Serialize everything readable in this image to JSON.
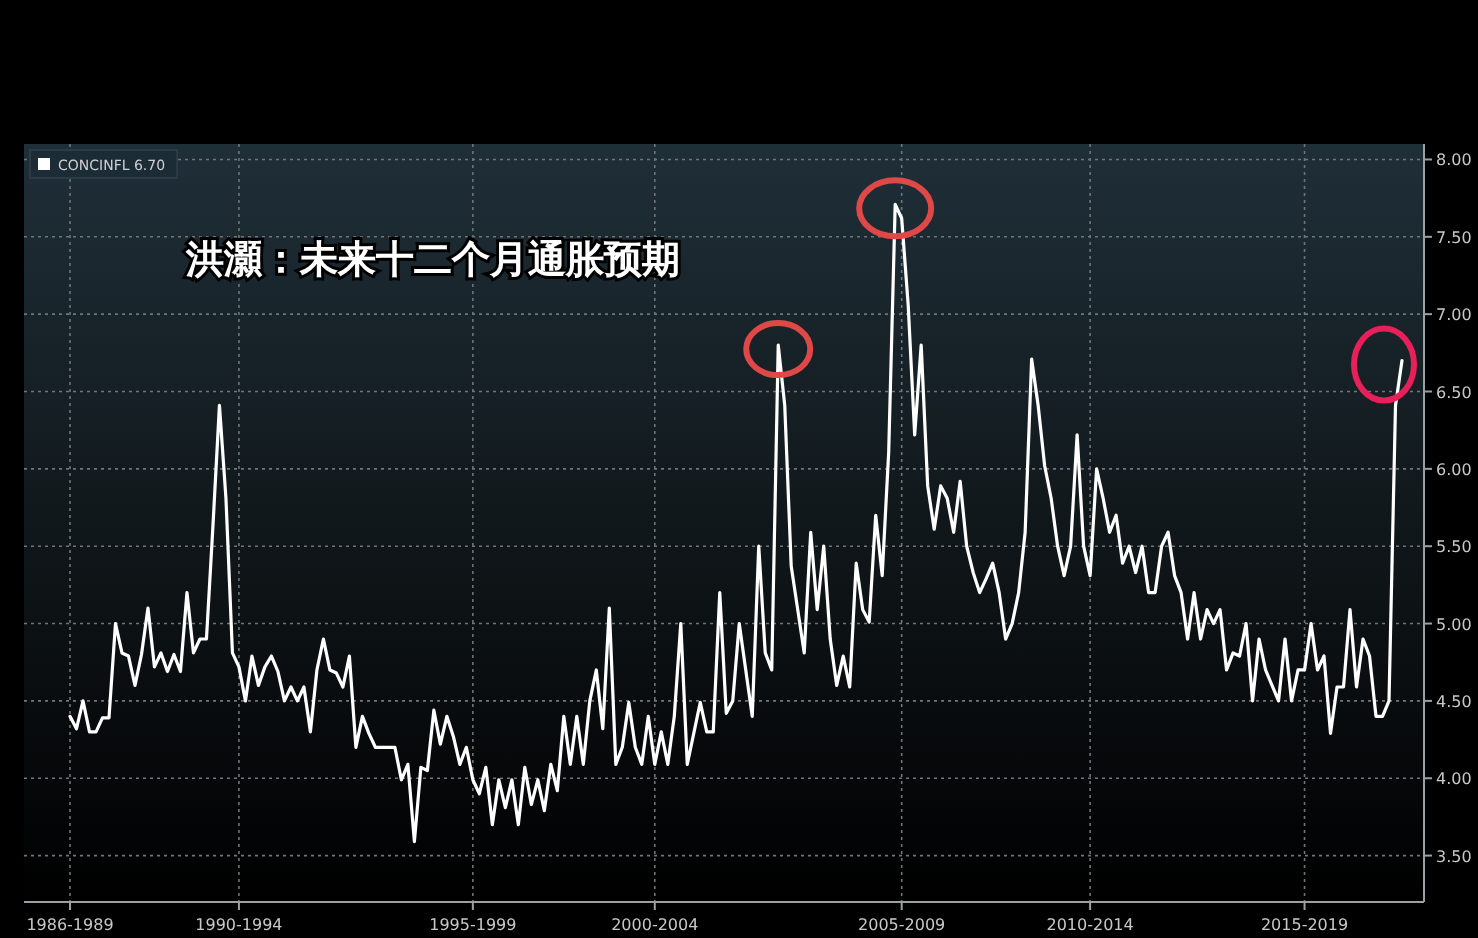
{
  "chart_data": {
    "type": "line",
    "title": "洪灝：未来十二个月通胀预期",
    "categories": [
      "1986-1989",
      null,
      null,
      null,
      null,
      null,
      null,
      null,
      null,
      null,
      null,
      null,
      null,
      null,
      null,
      null,
      null,
      null,
      null,
      null,
      null,
      null,
      null,
      null,
      null,
      null,
      "1990-1994",
      null,
      null,
      null,
      null,
      null,
      null,
      null,
      null,
      null,
      null,
      null,
      null,
      null,
      null,
      null,
      null,
      null,
      null,
      null,
      null,
      null,
      null,
      null,
      null,
      null,
      null,
      null,
      null,
      null,
      null,
      null,
      null,
      null,
      null,
      null,
      "1995-1999",
      null,
      null,
      null,
      null,
      null,
      null,
      null,
      null,
      null,
      null,
      null,
      null,
      null,
      null,
      null,
      null,
      null,
      null,
      null,
      null,
      null,
      null,
      null,
      null,
      null,
      null,
      null,
      "2000-2004",
      null,
      null,
      null,
      null,
      null,
      null,
      null,
      null,
      null,
      null,
      null,
      null,
      null,
      null,
      null,
      null,
      null,
      null,
      null,
      null,
      null,
      null,
      null,
      null,
      null,
      null,
      null,
      null,
      null,
      null,
      null,
      null,
      null,
      null,
      null,
      null,
      null,
      "2005-2009",
      null,
      null,
      null,
      null,
      null,
      null,
      null,
      null,
      null,
      null,
      null,
      null,
      null,
      null,
      null,
      null,
      null,
      null,
      null,
      null,
      null,
      null,
      null,
      null,
      null,
      null,
      null,
      null,
      "2010-2014",
      null,
      null,
      null,
      null,
      null,
      null,
      null,
      null,
      null,
      null,
      null,
      null,
      null,
      null,
      null,
      null,
      null,
      null,
      null,
      null,
      null,
      null,
      null,
      null,
      null,
      null,
      null,
      null,
      null,
      null,
      null,
      null,
      "2015-2019",
      null,
      null,
      null,
      null,
      null,
      null,
      null,
      null,
      null,
      null,
      null,
      null,
      null,
      null,
      null
    ],
    "series": [
      {
        "name": "CONCINFL 6.70",
        "color": "#ffffff",
        "values": [
          4.4,
          4.32,
          4.5,
          4.3,
          4.3,
          4.39,
          4.39,
          5.0,
          4.81,
          4.79,
          4.6,
          4.8,
          5.1,
          4.72,
          4.81,
          4.69,
          4.8,
          4.69,
          5.2,
          4.81,
          4.9,
          4.9,
          5.63,
          6.41,
          5.81,
          4.81,
          4.72,
          4.5,
          4.79,
          4.6,
          4.72,
          4.79,
          4.69,
          4.5,
          4.59,
          4.5,
          4.59,
          4.3,
          4.7,
          4.9,
          4.7,
          4.68,
          4.59,
          4.79,
          4.2,
          4.4,
          4.29,
          4.2,
          4.2,
          4.2,
          4.2,
          3.99,
          4.09,
          3.59,
          4.07,
          4.05,
          4.44,
          4.22,
          4.4,
          4.27,
          4.09,
          4.2,
          3.99,
          3.9,
          4.07,
          3.7,
          3.99,
          3.81,
          3.99,
          3.7,
          4.07,
          3.83,
          3.99,
          3.79,
          4.09,
          3.92,
          4.4,
          4.09,
          4.4,
          4.09,
          4.5,
          4.7,
          4.32,
          5.1,
          4.09,
          4.2,
          4.49,
          4.2,
          4.09,
          4.4,
          4.09,
          4.3,
          4.09,
          4.4,
          5.0,
          4.09,
          4.29,
          4.49,
          4.3,
          4.3,
          5.2,
          4.42,
          4.5,
          5.0,
          4.7,
          4.4,
          5.5,
          4.81,
          4.7,
          6.8,
          6.41,
          5.37,
          5.09,
          4.81,
          5.59,
          5.09,
          5.5,
          4.9,
          4.6,
          4.79,
          4.59,
          5.39,
          5.09,
          5.01,
          5.7,
          5.31,
          6.11,
          7.71,
          7.62,
          7.06,
          6.22,
          6.8,
          5.89,
          5.61,
          5.89,
          5.81,
          5.59,
          5.92,
          5.5,
          5.33,
          5.2,
          5.29,
          5.39,
          5.2,
          4.9,
          5.0,
          5.2,
          5.59,
          6.71,
          6.41,
          6.02,
          5.81,
          5.5,
          5.31,
          5.5,
          6.22,
          5.5,
          5.31,
          6.0,
          5.81,
          5.59,
          5.7,
          5.39,
          5.5,
          5.33,
          5.5,
          5.2,
          5.2,
          5.5,
          5.59,
          5.31,
          5.2,
          4.9,
          5.2,
          4.9,
          5.09,
          5.0,
          5.09,
          4.7,
          4.81,
          4.79,
          5.0,
          4.5,
          4.9,
          4.7,
          4.6,
          4.5,
          4.9,
          4.5,
          4.7,
          4.7,
          5.0,
          4.7,
          4.79,
          4.29,
          4.59,
          4.59,
          5.09,
          4.59,
          4.9,
          4.79,
          4.4,
          4.4,
          4.5,
          6.41,
          6.7
        ]
      }
    ],
    "ylim": [
      3.2,
      8.1
    ],
    "yticks": [
      {
        "value": 3.5,
        "label": "3.50"
      },
      {
        "value": 4,
        "label": "4.00"
      },
      {
        "value": 4.5,
        "label": "4.50"
      },
      {
        "value": 5,
        "label": "5.00"
      },
      {
        "value": 5.5,
        "label": "5.50"
      },
      {
        "value": 6,
        "label": "6.00"
      },
      {
        "value": 6.5,
        "label": "6.50"
      },
      {
        "value": 7,
        "label": "7.00"
      },
      {
        "value": 7.5,
        "label": "7.50"
      },
      {
        "value": 8,
        "label": "8.00"
      }
    ],
    "grid": true,
    "legend": "top left",
    "line_style": "solid",
    "marker": "none"
  }
}
